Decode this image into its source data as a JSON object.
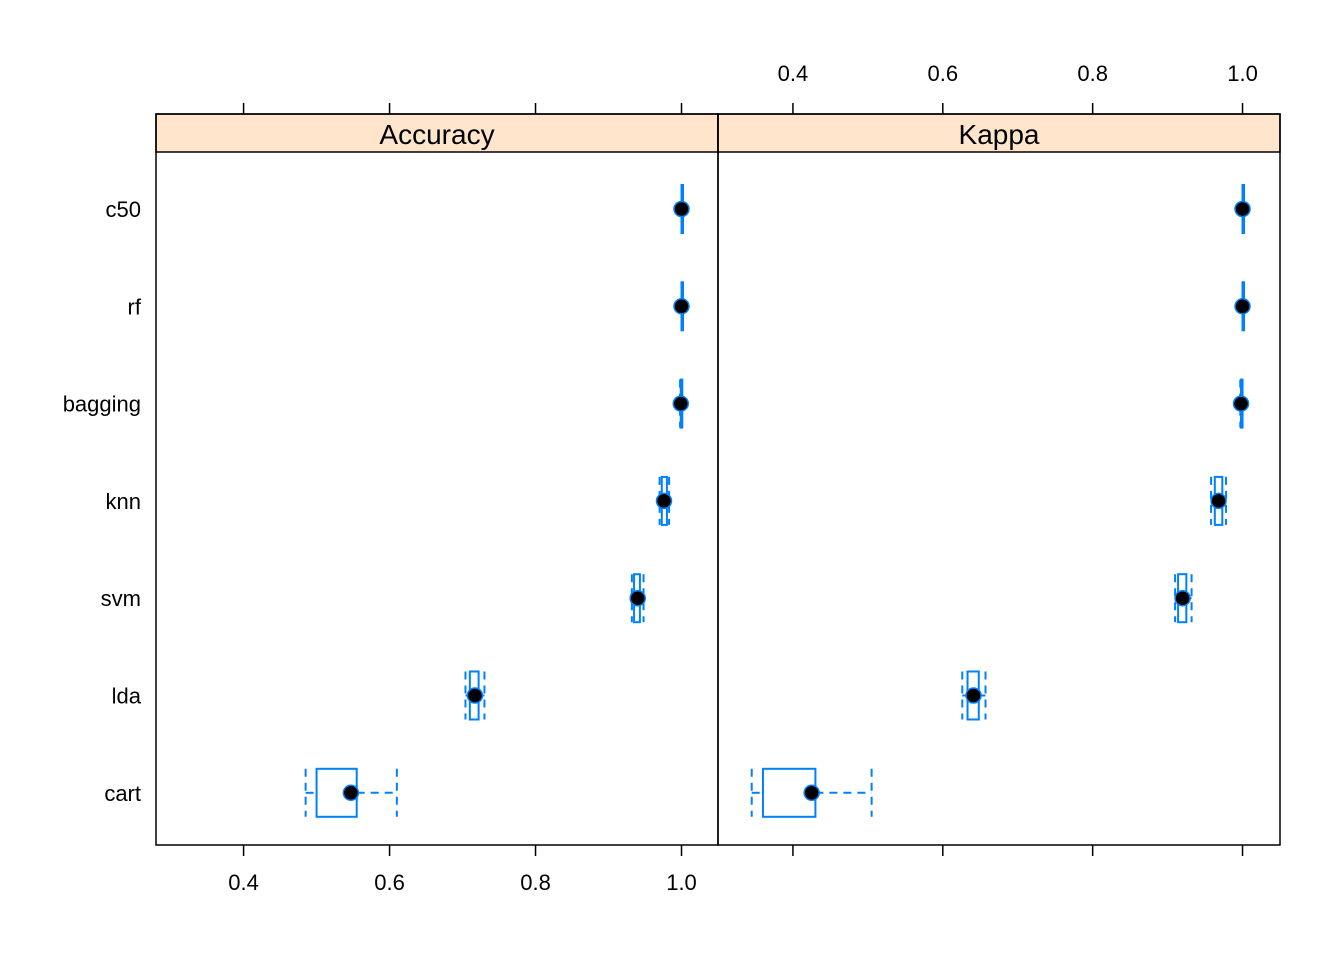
{
  "chart_data": {
    "type": "box",
    "orientation": "horizontal",
    "categories": [
      "c50",
      "rf",
      "bagging",
      "knn",
      "svm",
      "lda",
      "cart"
    ],
    "colors": {
      "strip": "#ffe5cc",
      "box": "#0080ff",
      "median_dot": "#000000",
      "frame": "#000000"
    },
    "panels": [
      {
        "name": "Accuracy",
        "xlim": [
          0.28,
          1.05
        ],
        "ticks": [
          0.4,
          0.6,
          0.8,
          1.0
        ],
        "tick_labels": [
          "0.4",
          "0.6",
          "0.8",
          "1.0"
        ],
        "tick_labels_side": "bottom",
        "boxes": [
          {
            "category": "c50",
            "min": 1.0,
            "q1": 1.0,
            "median": 1.0,
            "q3": 1.0,
            "max": 1.0
          },
          {
            "category": "rf",
            "min": 1.0,
            "q1": 1.0,
            "median": 1.0,
            "q3": 1.0,
            "max": 1.0
          },
          {
            "category": "bagging",
            "min": 0.998,
            "q1": 0.999,
            "median": 0.999,
            "q3": 1.0,
            "max": 1.0
          },
          {
            "category": "knn",
            "min": 0.97,
            "q1": 0.973,
            "median": 0.976,
            "q3": 0.98,
            "max": 0.983
          },
          {
            "category": "svm",
            "min": 0.932,
            "q1": 0.935,
            "median": 0.94,
            "q3": 0.943,
            "max": 0.948
          },
          {
            "category": "lda",
            "min": 0.704,
            "q1": 0.71,
            "median": 0.717,
            "q3": 0.722,
            "max": 0.73
          },
          {
            "category": "cart",
            "min": 0.485,
            "q1": 0.5,
            "median": 0.547,
            "q3": 0.555,
            "max": 0.61
          }
        ]
      },
      {
        "name": "Kappa",
        "xlim": [
          0.3,
          1.05
        ],
        "ticks": [
          0.4,
          0.6,
          0.8,
          1.0
        ],
        "tick_labels": [
          "0.4",
          "0.6",
          "0.8",
          "1.0"
        ],
        "tick_labels_side": "top",
        "boxes": [
          {
            "category": "c50",
            "min": 1.0,
            "q1": 1.0,
            "median": 1.0,
            "q3": 1.0,
            "max": 1.0
          },
          {
            "category": "rf",
            "min": 1.0,
            "q1": 1.0,
            "median": 1.0,
            "q3": 1.0,
            "max": 1.0
          },
          {
            "category": "bagging",
            "min": 0.997,
            "q1": 0.998,
            "median": 0.998,
            "q3": 0.999,
            "max": 1.0
          },
          {
            "category": "knn",
            "min": 0.958,
            "q1": 0.963,
            "median": 0.968,
            "q3": 0.973,
            "max": 0.978
          },
          {
            "category": "svm",
            "min": 0.91,
            "q1": 0.914,
            "median": 0.92,
            "q3": 0.925,
            "max": 0.932
          },
          {
            "category": "lda",
            "min": 0.626,
            "q1": 0.633,
            "median": 0.641,
            "q3": 0.648,
            "max": 0.657
          },
          {
            "category": "cart",
            "min": 0.345,
            "q1": 0.36,
            "median": 0.425,
            "q3": 0.43,
            "max": 0.505
          }
        ]
      }
    ]
  }
}
